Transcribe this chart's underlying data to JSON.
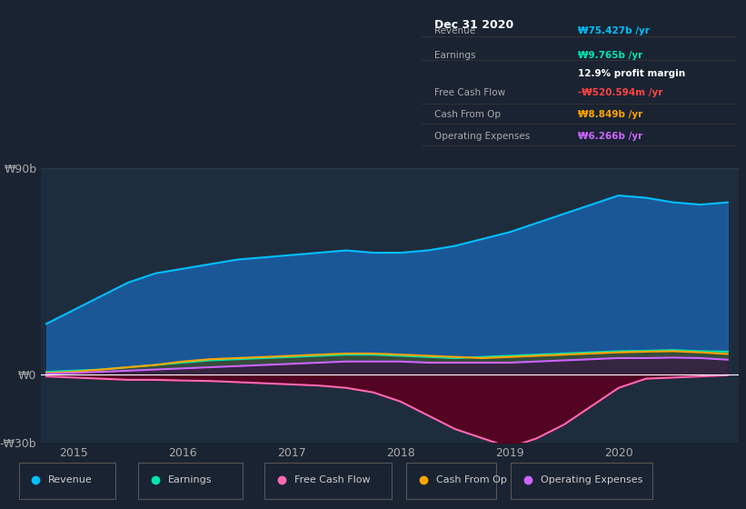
{
  "bg_color": "#1a2332",
  "chart_bg_color": "#1e2d3d",
  "title": "Dec 31 2020",
  "ylim": [
    -30,
    90
  ],
  "yticks": [
    -30,
    0,
    90
  ],
  "ytick_labels": [
    "-₩30b",
    "₩0",
    "₩90b"
  ],
  "xlim": [
    2014.7,
    2021.1
  ],
  "xticks": [
    2015,
    2016,
    2017,
    2018,
    2019,
    2020
  ],
  "info_rows": [
    {
      "label": "Revenue",
      "value": "₩75.427b /yr",
      "value_color": "#00bfff"
    },
    {
      "label": "Earnings",
      "value": "₩9.765b /yr",
      "value_color": "#00e5b0"
    },
    {
      "label": "",
      "value": "12.9% profit margin",
      "value_color": "#ffffff"
    },
    {
      "label": "Free Cash Flow",
      "value": "-₩520.594m /yr",
      "value_color": "#ff4444"
    },
    {
      "label": "Cash From Op",
      "value": "₩8.849b /yr",
      "value_color": "#ffa500"
    },
    {
      "label": "Operating Expenses",
      "value": "₩6.266b /yr",
      "value_color": "#cc66ff"
    }
  ],
  "legend": [
    {
      "label": "Revenue",
      "color": "#00bfff"
    },
    {
      "label": "Earnings",
      "color": "#00e5b0"
    },
    {
      "label": "Free Cash Flow",
      "color": "#ff69b4"
    },
    {
      "label": "Cash From Op",
      "color": "#ffa500"
    },
    {
      "label": "Operating Expenses",
      "color": "#cc66ff"
    }
  ],
  "series": {
    "x": [
      2014.75,
      2015.0,
      2015.25,
      2015.5,
      2015.75,
      2016.0,
      2016.25,
      2016.5,
      2016.75,
      2017.0,
      2017.25,
      2017.5,
      2017.75,
      2018.0,
      2018.25,
      2018.5,
      2018.75,
      2019.0,
      2019.25,
      2019.5,
      2019.75,
      2020.0,
      2020.25,
      2020.5,
      2020.75,
      2021.0
    ],
    "revenue": [
      22,
      28,
      34,
      40,
      44,
      46,
      48,
      50,
      51,
      52,
      53,
      54,
      53,
      53,
      54,
      56,
      59,
      62,
      66,
      70,
      74,
      78,
      77,
      75,
      74,
      75
    ],
    "earnings": [
      1.0,
      1.5,
      2.0,
      3.0,
      4.0,
      5.0,
      6.0,
      6.5,
      7.0,
      7.5,
      8.0,
      8.5,
      8.5,
      8.0,
      7.5,
      7.0,
      7.5,
      8.0,
      8.5,
      9.0,
      9.5,
      10.0,
      10.2,
      10.5,
      10.0,
      9.8
    ],
    "free_cash_flow": [
      -1.0,
      -1.5,
      -2.0,
      -2.5,
      -2.5,
      -2.8,
      -3.0,
      -3.5,
      -4.0,
      -4.5,
      -5.0,
      -6.0,
      -8.0,
      -12.0,
      -18.0,
      -24.0,
      -28.0,
      -32.0,
      -28.0,
      -22.0,
      -14.0,
      -6.0,
      -2.0,
      -1.5,
      -1.0,
      -0.5
    ],
    "cash_from_op": [
      0.5,
      1.0,
      2.0,
      3.0,
      4.0,
      5.5,
      6.5,
      7.0,
      7.5,
      8.0,
      8.5,
      9.0,
      9.0,
      8.5,
      8.0,
      7.5,
      7.0,
      7.5,
      8.0,
      8.5,
      9.0,
      9.5,
      9.8,
      10.0,
      9.5,
      8.8
    ],
    "op_expenses": [
      0.2,
      0.5,
      1.0,
      1.5,
      2.0,
      2.5,
      3.0,
      3.5,
      4.0,
      4.5,
      5.0,
      5.5,
      5.5,
      5.5,
      5.0,
      5.0,
      5.0,
      5.0,
      5.5,
      6.0,
      6.5,
      7.0,
      7.0,
      7.2,
      7.0,
      6.3
    ]
  }
}
